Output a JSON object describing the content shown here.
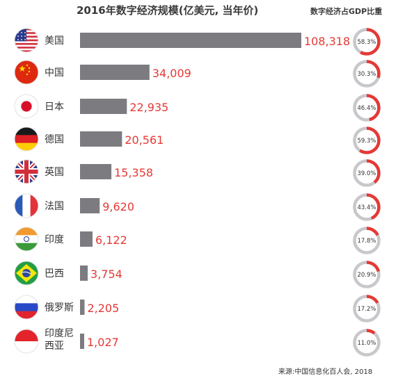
{
  "title": "2016年数字经济规模(亿美元, 当年价)",
  "side_title": "数字经济占GDP比重",
  "source": "来源:中国信息化百人会, 2018",
  "colors": {
    "bar": "#7c7c80",
    "value": "#e53935",
    "ring_track": "#c8c8cc",
    "ring_fill": "#e53935",
    "label": "#333333"
  },
  "chart_data": {
    "type": "bar",
    "orientation": "horizontal",
    "categories": [
      "美国",
      "中国",
      "日本",
      "德国",
      "英国",
      "法国",
      "印度",
      "巴西",
      "俄罗斯",
      "印度尼西亚"
    ],
    "category_lines": [
      [
        "美国"
      ],
      [
        "中国"
      ],
      [
        "日本"
      ],
      [
        "德国"
      ],
      [
        "英国"
      ],
      [
        "法国"
      ],
      [
        "印度"
      ],
      [
        "巴西"
      ],
      [
        "俄罗斯"
      ],
      [
        "印度尼",
        "西亚"
      ]
    ],
    "flags": [
      "us-flag",
      "china-flag",
      "japan-flag",
      "germany-flag",
      "uk-flag",
      "france-flag",
      "india-flag",
      "brazil-flag",
      "russia-flag",
      "indonesia-flag"
    ],
    "values": [
      108318,
      34009,
      22935,
      20561,
      15358,
      9620,
      6122,
      3754,
      2205,
      1027
    ],
    "value_labels": [
      "108,318",
      "34,009",
      "22,935",
      "20,561",
      "15,358",
      "9,620",
      "6,122",
      "3,754",
      "2,205",
      "1,027"
    ],
    "gdp_share": [
      58.3,
      30.3,
      46.4,
      59.3,
      39.0,
      43.4,
      17.8,
      20.9,
      17.2,
      11.0
    ],
    "gdp_share_labels": [
      "58.3%",
      "30.3%",
      "46.4%",
      "59.3%",
      "39.0%",
      "43.4%",
      "17.8%",
      "20.9%",
      "17.2%",
      "11.0%"
    ]
  }
}
